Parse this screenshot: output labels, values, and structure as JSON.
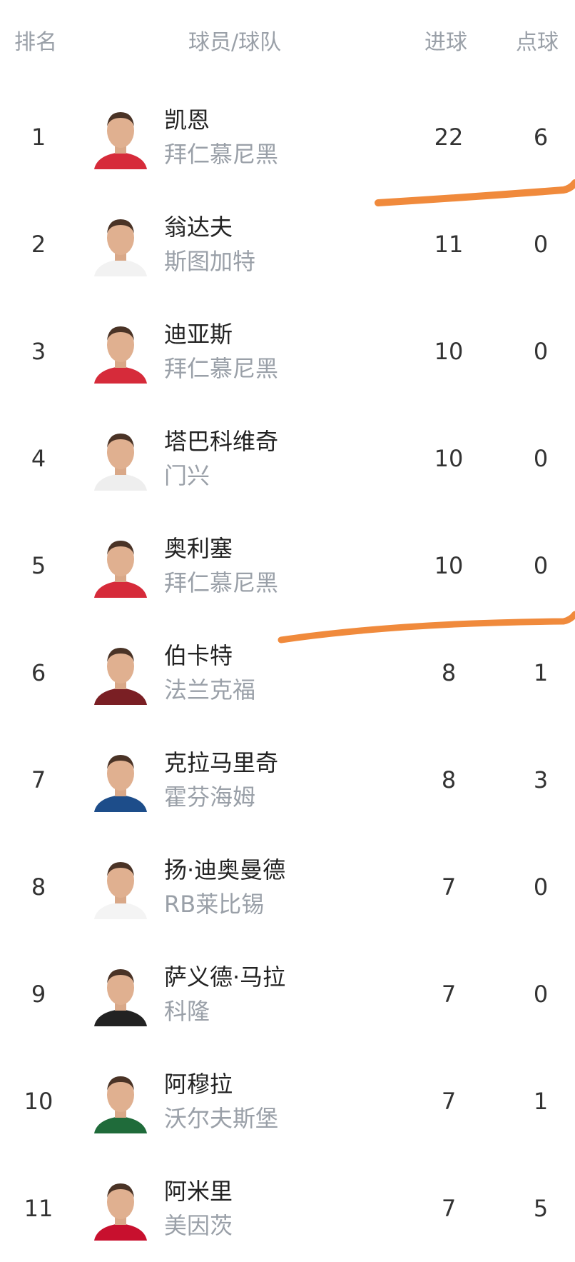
{
  "header": {
    "rank": "排名",
    "player_team": "球员/球队",
    "goals": "进球",
    "penalties": "点球"
  },
  "rows": [
    {
      "rank": "1",
      "name": "凯恩",
      "team": "拜仁慕尼黑",
      "goals": "22",
      "penalties": "6",
      "jersey": "#d62b3a"
    },
    {
      "rank": "2",
      "name": "翁达夫",
      "team": "斯图加特",
      "goals": "11",
      "penalties": "0",
      "jersey": "#f2f2f2"
    },
    {
      "rank": "3",
      "name": "迪亚斯",
      "team": "拜仁慕尼黑",
      "goals": "10",
      "penalties": "0",
      "jersey": "#d62b3a"
    },
    {
      "rank": "4",
      "name": "塔巴科维奇",
      "team": "门兴",
      "goals": "10",
      "penalties": "0",
      "jersey": "#eeeeee"
    },
    {
      "rank": "5",
      "name": "奥利塞",
      "team": "拜仁慕尼黑",
      "goals": "10",
      "penalties": "0",
      "jersey": "#d62b3a"
    },
    {
      "rank": "6",
      "name": "伯卡特",
      "team": "法兰克福",
      "goals": "8",
      "penalties": "1",
      "jersey": "#7a1f24"
    },
    {
      "rank": "7",
      "name": "克拉马里奇",
      "team": "霍芬海姆",
      "goals": "8",
      "penalties": "3",
      "jersey": "#1d4d8a"
    },
    {
      "rank": "8",
      "name": "扬·迪奥曼德",
      "team": "RB莱比锡",
      "goals": "7",
      "penalties": "0",
      "jersey": "#f4f4f4"
    },
    {
      "rank": "9",
      "name": "萨义德·马拉",
      "team": "科隆",
      "goals": "7",
      "penalties": "0",
      "jersey": "#222222"
    },
    {
      "rank": "10",
      "name": "阿穆拉",
      "team": "沃尔夫斯堡",
      "goals": "7",
      "penalties": "1",
      "jersey": "#1f6b3a"
    },
    {
      "rank": "11",
      "name": "阿米里",
      "team": "美因茨",
      "goals": "7",
      "penalties": "5",
      "jersey": "#c8102e"
    }
  ],
  "colors": {
    "annotation_stroke": "#f08a3c",
    "header_text": "#9aa0a8",
    "team_text": "#9aa0a8"
  }
}
